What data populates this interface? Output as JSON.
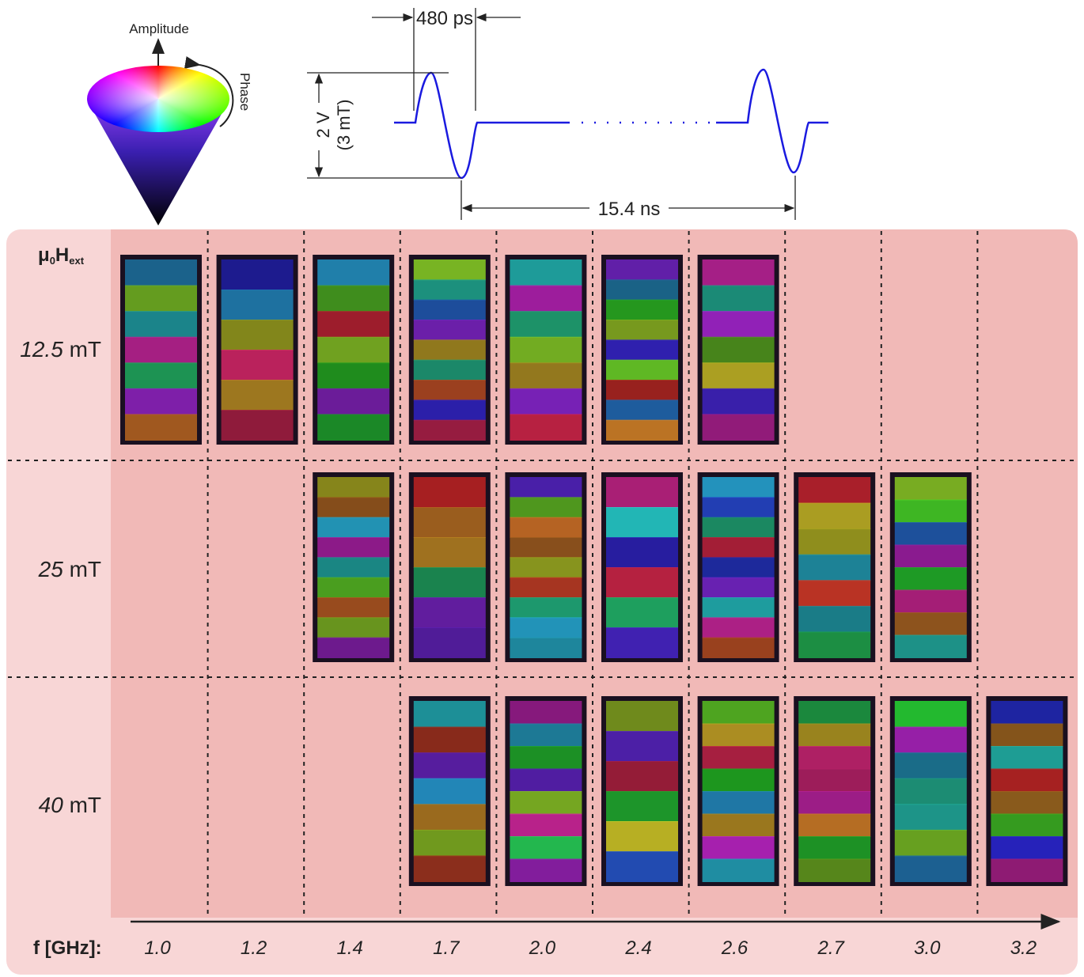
{
  "cone": {
    "amplitude": "Amplitude",
    "phase": "Phase"
  },
  "pulse": {
    "width": "480 ps",
    "amplitude": "2 V",
    "field": "(3 mT)",
    "period": "15.4 ns"
  },
  "grid": {
    "field_header": {
      "base1": "μ",
      "sub1": "0",
      "base2": "H",
      "sub2": "ext"
    },
    "rows": [
      {
        "value": "12.5",
        "unit": "mT"
      },
      {
        "value": "25",
        "unit": "mT"
      },
      {
        "value": "40",
        "unit": "mT"
      }
    ],
    "frequency_header": "f [GHz]:",
    "frequencies": [
      "1.0",
      "1.2",
      "1.4",
      "1.7",
      "2.0",
      "2.4",
      "2.6",
      "2.7",
      "3.0",
      "3.2"
    ]
  }
}
